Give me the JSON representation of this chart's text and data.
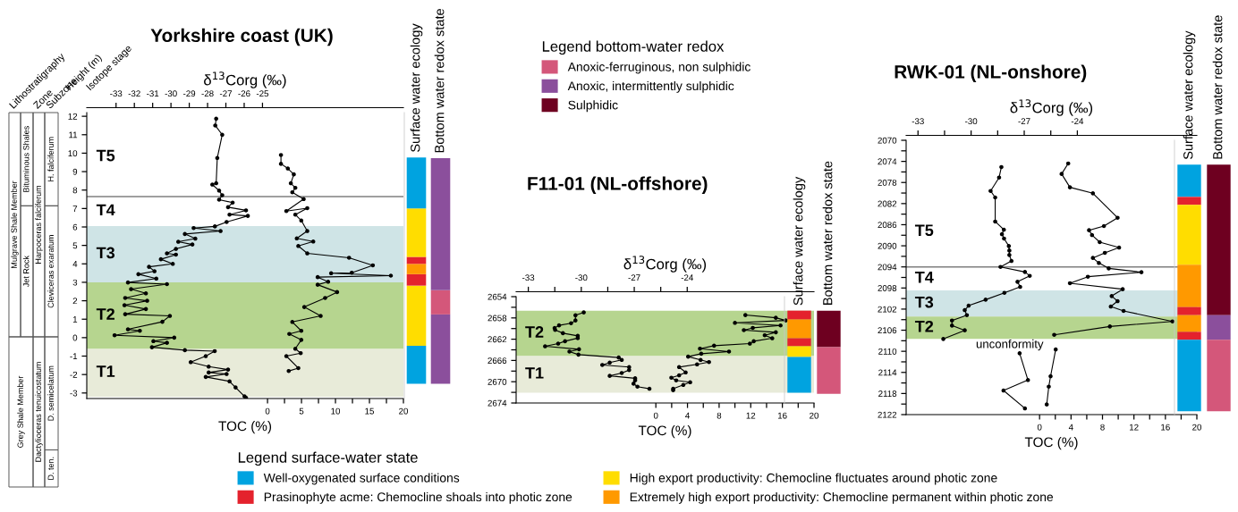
{
  "chart_data": [
    {
      "type": "other",
      "categories": [
        "Lithostratigraphy",
        "Zone",
        "Subzone"
      ],
      "annotations": [
        "Grey Shale Member",
        "Mulgrave Shale Member",
        "Jet Rock",
        "Bituminous Shales",
        "Dactylioceras tenuicostatum",
        "Harpoceras falciferum",
        "D. ten.",
        "D. semicelatum",
        "Cleviceras exaratum",
        "H. falciferum"
      ]
    },
    {
      "type": "line",
      "title": "Yorkshire coast (UK)",
      "xlabel": "TOC (%)",
      "x2label": "δ$^{13}$Corg (‰)",
      "ylabel": "Height (m)",
      "annotations": [
        "Isotope stage",
        "T4",
        "T5"
      ],
      "xlim": [
        -26.6,
        20
      ],
      "xticks": [
        0,
        {
          "value": 2.5,
          "label": null
        },
        5,
        {
          "value": 7.5,
          "label": null
        },
        10,
        {
          "value": 12.5,
          "label": null
        },
        15,
        {
          "value": 17.5,
          "label": null
        },
        20
      ],
      "x2lim": [
        -34.6,
        -17.3
      ],
      "x2ticks": [
        -33,
        -32,
        -31,
        -30,
        -29,
        -28,
        -27,
        -26,
        -25
      ],
      "ylim": [
        -3.3,
        12.2
      ],
      "yticks": [
        -3,
        -2,
        -1,
        0,
        1,
        2,
        3,
        4,
        5,
        6,
        7,
        8,
        9,
        10,
        11,
        12
      ],
      "marker": "circle",
      "bands": [
        {
          "axis": "y",
          "from": -3.2,
          "to": -0.6,
          "label": "T1",
          "color": "#e8ebd9"
        },
        {
          "axis": "y",
          "from": -0.6,
          "to": 3.0,
          "label": "T2",
          "color": "#b6d58f"
        },
        {
          "axis": "y",
          "from": 3.0,
          "to": 6.05,
          "label": "T3",
          "color": "#cfe4e6"
        }
      ],
      "ref_lines": [
        {
          "axis": "y",
          "value": 7.65,
          "color": "#7f7f7f"
        }
      ],
      "series": [
        {
          "axis": "x2",
          "color": "#000000",
          "x": [
            -27.53,
            -27.58,
            -27.2,
            -27.47,
            -27.53,
            -27.74,
            -27.37,
            -27.2,
            -27.37,
            -26.63,
            -26.88,
            -25.9,
            -26.8,
            -25.8,
            -26.96,
            -27.6,
            -28.76,
            -27.29,
            -29.24,
            -28.67,
            -29.6,
            -28.83,
            -29.73,
            -30.22,
            -29.73,
            -30.55,
            -29.9,
            -31.2,
            -30.9,
            -31.78,
            -30.8,
            -32.35,
            -30.22,
            -32.18,
            -31.37,
            -32.5,
            -31.3,
            -32.54,
            -31.37,
            -32.5,
            -30.06,
            -30.47,
            -32.35,
            -31.7,
            -33.08,
            -29.82,
            -30.96,
            -30.22,
            -31.04,
            -29.24,
            -27.61,
            -28.1,
            -28.92,
            -27.94,
            -26.88,
            -27.94,
            -26.96,
            -28.1,
            -26.8,
            -26.47,
            -25.98,
            -25.9
          ],
          "values": [
            11.87,
            11.5,
            11.0,
            9.74,
            8.37,
            8.3,
            7.97,
            7.72,
            7.48,
            7.32,
            7.07,
            6.9,
            6.67,
            6.6,
            6.27,
            6.03,
            5.94,
            5.78,
            5.62,
            5.37,
            5.2,
            5.05,
            4.81,
            4.57,
            4.5,
            4.25,
            4.0,
            3.84,
            3.6,
            3.44,
            3.2,
            2.99,
            2.9,
            2.63,
            2.4,
            2.15,
            2.0,
            1.76,
            1.55,
            1.27,
            1.18,
            0.86,
            0.45,
            0.37,
            0.13,
            0.0,
            -0.19,
            -0.28,
            -0.52,
            -0.68,
            -0.73,
            -1.0,
            -1.33,
            -1.57,
            -1.73,
            -1.89,
            -1.97,
            -2.13,
            -2.37,
            -2.7,
            -3.18,
            -3.26
          ]
        },
        {
          "color": "#000000",
          "x": [
            1.98,
            1.98,
            2.99,
            3.87,
            3.43,
            4.09,
            3.65,
            5.32,
            2.77,
            5.85,
            4.09,
            4.97,
            5.85,
            4.31,
            6.73,
            4.53,
            5.85,
            12.0,
            15.5,
            12.4,
            9.36,
            18.15,
            7.38,
            8.92,
            7.38,
            10.24,
            8.48,
            5.41,
            7.82,
            3.65,
            4.97,
            3.21,
            4.97,
            4.09,
            4.88,
            2.77,
            4.53,
            3.12
          ],
          "values": [
            9.9,
            9.42,
            9.17,
            8.85,
            8.37,
            8.12,
            7.88,
            7.51,
            6.86,
            7.02,
            6.67,
            6.35,
            5.78,
            5.38,
            5.21,
            4.97,
            4.57,
            4.33,
            3.92,
            3.52,
            3.49,
            3.36,
            3.28,
            3.03,
            2.87,
            2.47,
            2.15,
            1.66,
            1.18,
            0.85,
            0.37,
            0.2,
            -0.12,
            -0.6,
            -0.84,
            -1.0,
            -1.65,
            -1.81
          ]
        }
      ]
    },
    {
      "type": "bar",
      "categories": [
        "Surface water ecology",
        "Bottom water redox state"
      ],
      "ylim": [
        -3.3,
        12.2
      ],
      "tick_labels": "x",
      "series": [
        {
          "color": "#00a3e0",
          "base": [
            -2.5,
            null
          ],
          "values": [
            2.06,
            null
          ]
        },
        {
          "color": "#ffdd00",
          "base": [
            -0.44,
            null
          ],
          "values": [
            3.26,
            null
          ]
        },
        {
          "color": "#e4222d",
          "base": [
            2.82,
            null
          ],
          "values": [
            0.62,
            null
          ]
        },
        {
          "color": "#ff9900",
          "base": [
            3.44,
            null
          ],
          "values": [
            0.56,
            null
          ]
        },
        {
          "color": "#e4222d",
          "base": [
            4.0,
            null
          ],
          "values": [
            0.38,
            null
          ]
        },
        {
          "color": "#ffdd00",
          "base": [
            4.38,
            null
          ],
          "values": [
            2.62,
            null
          ]
        },
        {
          "color": "#00a3e0",
          "base": [
            7.0,
            null
          ],
          "values": [
            2.77,
            null
          ]
        },
        {
          "color": "#8b4f9c",
          "base": [
            null,
            -2.5
          ],
          "values": [
            null,
            3.76
          ]
        },
        {
          "color": "#d4577a",
          "base": [
            null,
            1.26
          ],
          "values": [
            null,
            1.31
          ]
        },
        {
          "color": "#8b4f9c",
          "base": [
            null,
            2.57
          ],
          "values": [
            null,
            7.16
          ]
        }
      ]
    },
    {
      "type": "other",
      "legend_title": "Legend bottom-water redox",
      "legend": "top left",
      "series": [
        {
          "name": "Anoxic-ferruginous, non sulphidic",
          "color": "#d4577a"
        },
        {
          "name": "Anoxic, intermittently sulphidic",
          "color": "#8b4f9c"
        },
        {
          "name": "Sulphidic",
          "color": "#6e0020"
        }
      ]
    },
    {
      "type": "line",
      "title": "F11-01 (NL-offshore)",
      "xlabel": "TOC (%)",
      "x2label": "δ$^{13}$Corg (‰)",
      "xlim": [
        -17.67,
        20
      ],
      "xticks": [
        0,
        {
          "value": 2,
          "label": null
        },
        4,
        {
          "value": 6,
          "label": null
        },
        8,
        {
          "value": 10,
          "label": null
        },
        12,
        {
          "value": 14,
          "label": null
        },
        16,
        {
          "value": 18,
          "label": null
        },
        20
      ],
      "x2lim": [
        -33.69,
        -16.82
      ],
      "x2ticks": [
        -33,
        {
          "value": -31.5,
          "label": null
        },
        -30,
        {
          "value": -28.5,
          "label": null
        },
        -27,
        {
          "value": -25.5,
          "label": null
        },
        -24
      ],
      "ylim": [
        2674,
        2654
      ],
      "yticks": [
        2654,
        {
          "value": 2656,
          "label": null
        },
        2658,
        {
          "value": 2660,
          "label": null
        },
        2662,
        {
          "value": 2664,
          "label": null
        },
        2666,
        {
          "value": 2668,
          "label": null
        },
        2670,
        {
          "value": 2672,
          "label": null
        },
        2674
      ],
      "marker": "circle",
      "bands": [
        {
          "axis": "y",
          "from": 2656.63,
          "to": 2665.17,
          "label": "T2",
          "color": "#b6d58f"
        },
        {
          "axis": "y",
          "from": 2665.17,
          "to": 2672.05,
          "label": "T1",
          "color": "#e8ebd9"
        }
      ],
      "series": [
        {
          "axis": "x2",
          "color": "#000000",
          "x": [
            -29.86,
            -30.33,
            -30.33,
            -30.58,
            -31.26,
            -31.51,
            -31.48,
            -31.04,
            -30.2,
            -30.2,
            -30.92,
            -31.31,
            -32.05,
            -30.13,
            -30.67,
            -30.16,
            -27.88,
            -27.71,
            -28.39,
            -28.81,
            -27.29,
            -27.29,
            -27.71,
            -28.39,
            -26.95,
            -26.95,
            -27.04,
            -26.82,
            -26.14
          ],
          "values": [
            2656.96,
            2657.5,
            2658.47,
            2659.0,
            2659.4,
            2659.9,
            2660.26,
            2660.87,
            2661.37,
            2661.8,
            2662.38,
            2662.83,
            2663.33,
            2663.89,
            2664.33,
            2664.9,
            2665.45,
            2665.9,
            2666.4,
            2666.85,
            2667.24,
            2667.8,
            2668.36,
            2668.9,
            2669.36,
            2669.75,
            2670.37,
            2670.93,
            2671.32
          ]
        },
        {
          "color": "#000000",
          "x": [
            11.32,
            15.17,
            16.42,
            10.0,
            15.77,
            12.26,
            11.13,
            15.17,
            13.77,
            14.72,
            12.38,
            11.89,
            7.36,
            5.58,
            9.25,
            5.74,
            4.08,
            5.66,
            6.72,
            5.21,
            2.94,
            3.77,
            2.94,
            1.96,
            2.57,
            4.34,
            3.47,
            2.19,
            2.19
          ],
          "values": [
            2657.46,
            2657.97,
            2658.47,
            2658.92,
            2659.42,
            2659.87,
            2660.3,
            2660.7,
            2661.26,
            2661.82,
            2662.38,
            2662.83,
            2663.22,
            2663.78,
            2664.33,
            2664.73,
            2665.28,
            2665.9,
            2666.3,
            2666.74,
            2667.24,
            2668.25,
            2668.8,
            2669.25,
            2669.75,
            2670.1,
            2670.6,
            2671.32,
            2671.6
          ]
        }
      ]
    },
    {
      "type": "bar",
      "categories": [
        "Surface water ecology",
        "Bottom water redox state"
      ],
      "ylim": [
        2674,
        2654
      ],
      "tick_labels": "x",
      "series": [
        {
          "color": "#e4222d",
          "base": [
            2656.63,
            null
          ],
          "values": [
            1.67,
            null
          ]
        },
        {
          "color": "#ff9900",
          "base": [
            2658.3,
            null
          ],
          "values": [
            3.52,
            null
          ]
        },
        {
          "color": "#e4222d",
          "base": [
            2661.82,
            null
          ],
          "values": [
            1.51,
            null
          ]
        },
        {
          "color": "#ffdd00",
          "base": [
            2663.33,
            null
          ],
          "values": [
            2.01,
            null
          ]
        },
        {
          "color": "#00a3e0",
          "base": [
            2665.34,
            null
          ],
          "values": [
            6.71,
            null
          ]
        },
        {
          "color": "#6e0020",
          "base": [
            null,
            2656.63
          ],
          "values": [
            null,
            6.87
          ]
        },
        {
          "color": "#d4577a",
          "base": [
            null,
            2663.5
          ],
          "values": [
            null,
            8.77
          ]
        }
      ]
    },
    {
      "type": "line",
      "title": "RWK-01 (NL-onshore)",
      "xlabel": "TOC (%)",
      "x2label": "δ$^{13}$Corg (‰)",
      "annotations": [
        "T5",
        "T4",
        "unconformity"
      ],
      "xlim": [
        -16.97,
        20
      ],
      "xticks": [
        0,
        {
          "value": 2,
          "label": null
        },
        4,
        {
          "value": 6,
          "label": null
        },
        8,
        {
          "value": 10,
          "label": null
        },
        12,
        {
          "value": 14,
          "label": null
        },
        16,
        {
          "value": 18,
          "label": null
        },
        20
      ],
      "x2lim": [
        -33.67,
        -17.25
      ],
      "x2ticks": [
        -33,
        {
          "value": -31.5,
          "label": null
        },
        -30,
        {
          "value": -28.5,
          "label": null
        },
        -27,
        {
          "value": -25.5,
          "label": null
        },
        -24
      ],
      "ylim": [
        2122,
        2070
      ],
      "yticks": [
        2070,
        {
          "value": 2072,
          "label": null
        },
        2074,
        {
          "value": 2076,
          "label": null
        },
        2078,
        {
          "value": 2080,
          "label": null
        },
        2082,
        {
          "value": 2084,
          "label": null
        },
        2086,
        {
          "value": 2088,
          "label": null
        },
        2090,
        {
          "value": 2092,
          "label": null
        },
        2094,
        {
          "value": 2096,
          "label": null
        },
        2098,
        {
          "value": 2100,
          "label": null
        },
        2102,
        {
          "value": 2104,
          "label": null
        },
        2106,
        {
          "value": 2108,
          "label": null
        },
        2110,
        {
          "value": 2112,
          "label": null
        },
        2114,
        {
          "value": 2116,
          "label": null
        },
        2118,
        {
          "value": 2120,
          "label": null
        },
        2122
      ],
      "marker": "circle",
      "bands": [
        {
          "axis": "y",
          "from": 2098.46,
          "to": 2103.43,
          "label": "T3",
          "color": "#cfe4e6"
        },
        {
          "axis": "y",
          "from": 2103.43,
          "to": 2107.66,
          "label": "T2",
          "color": "#b6d58f"
        }
      ],
      "ref_lines": [
        {
          "axis": "y",
          "value": 2094.0,
          "color": "#7f7f7f"
        }
      ],
      "series": [
        {
          "axis": "x2",
          "color": "#000000",
          "x": [
            -28.29,
            -28.42,
            -28.9,
            -28.64,
            -28.64,
            -28.15,
            -28.26,
            -28.14,
            -27.87,
            -27.84,
            -27.84,
            -27.72,
            -28.34,
            -26.96,
            -26.69,
            -27.38,
            -27.23,
            -28.12,
            -29.18,
            -30.14,
            -30.36,
            -30.24,
            -31.08,
            -31.08,
            -30.36,
            -31.57,
            null,
            -27.26,
            -26.79,
            -28.17,
            -26.96
          ],
          "values": [
            2075.08,
            2077.06,
            2079.6,
            2080.84,
            2085.4,
            2086.94,
            2087.79,
            2088.63,
            2090.05,
            2090.9,
            2091.74,
            2092.87,
            2094.0,
            2094.96,
            2095.69,
            2096.82,
            2097.78,
            2098.91,
            2100.21,
            2101.34,
            2102.19,
            2103.15,
            2104.16,
            2105.12,
            2106.02,
            2107.66,
            null,
            2110.37,
            2115.45,
            2117.43,
            2120.82
          ]
        },
        {
          "color": "#000000",
          "x": [
            3.64,
            2.8,
            3.86,
            6.78,
            9.92,
            8.18,
            6.29,
            6.67,
            7.65,
            10.11,
            8.3,
            6.78,
            7.54,
            8.79,
            12.95,
            6.14,
            3.86,
            10.57,
            9.17,
            9.92,
            9.06,
            10.68,
            16.9,
            8.94,
            1.86,
            null,
            2.05,
            1.4,
            1.17,
            0.91
          ],
          "values": [
            2074.4,
            2076.38,
            2078.92,
            2080.05,
            2084.68,
            2086.26,
            2087.05,
            2087.96,
            2089.31,
            2090.33,
            2091.34,
            2092.3,
            2093.26,
            2094.28,
            2095.01,
            2095.86,
            2097.1,
            2098.23,
            2099.53,
            2100.49,
            2101.51,
            2102.35,
            2104.33,
            2105.29,
            2106.87,
            null,
            2109.64,
            2114.72,
            2116.7,
            2120.08
          ]
        }
      ]
    },
    {
      "type": "bar",
      "categories": [
        "Surface water ecology",
        "Bottom water redox state"
      ],
      "ylim": [
        2122,
        2070
      ],
      "tick_labels": "x",
      "series": [
        {
          "color": "#00a3e0",
          "base": [
            2074.63,
            null
          ],
          "values": [
            6.1,
            null
          ]
        },
        {
          "color": "#e4222d",
          "base": [
            2080.73,
            null
          ],
          "values": [
            1.52,
            null
          ]
        },
        {
          "color": "#ffdd00",
          "base": [
            2082.25,
            null
          ],
          "values": [
            11.35,
            null
          ]
        },
        {
          "color": "#ff9900",
          "base": [
            2093.6,
            null
          ],
          "values": [
            8.02,
            null
          ]
        },
        {
          "color": "#e4222d",
          "base": [
            2101.62,
            null
          ],
          "values": [
            1.53,
            null
          ]
        },
        {
          "color": "#ff9900",
          "base": [
            2103.15,
            null
          ],
          "values": [
            3.16,
            null
          ]
        },
        {
          "color": "#e4222d",
          "base": [
            2106.31,
            null
          ],
          "values": [
            1.52,
            null
          ]
        },
        {
          "color": "#00a3e0",
          "base": [
            2107.83,
            null
          ],
          "values": [
            13.55,
            null
          ]
        },
        {
          "color": "#6e0020",
          "base": [
            null,
            2074.63
          ],
          "values": [
            null,
            28.52
          ]
        },
        {
          "color": "#8b4f9c",
          "base": [
            null,
            2103.15
          ],
          "values": [
            null,
            4.68
          ]
        },
        {
          "color": "#d4577a",
          "base": [
            null,
            2107.83
          ],
          "values": [
            null,
            13.55
          ]
        }
      ]
    },
    {
      "type": "other",
      "legend_title": "Legend surface-water state",
      "legend": "top left",
      "series": [
        {
          "name": "Well-oxygenated surface conditions",
          "color": "#00a3e0"
        },
        {
          "name": "Prasinophyte acme: Chemocline shoals into photic zone",
          "color": "#e4222d"
        },
        {
          "name": "High export productivity: Chemocline fluctuates around photic zone",
          "color": "#ffdd00"
        },
        {
          "name": "Extremely high export productivity: Chemocline permanent within photic zone",
          "color": "#ff9900"
        }
      ]
    }
  ]
}
